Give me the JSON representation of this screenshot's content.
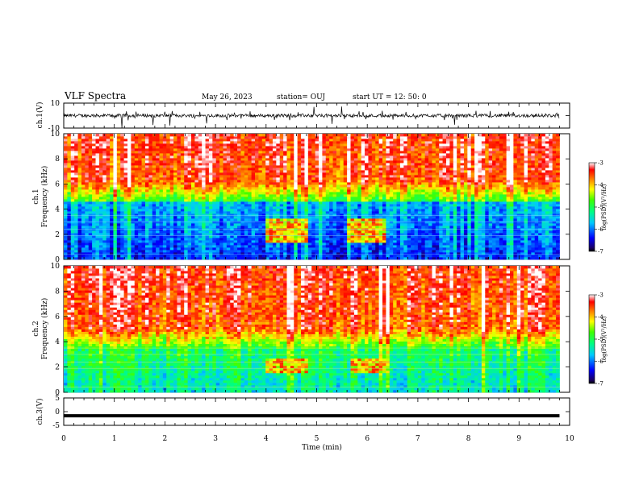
{
  "header": {
    "title": "VLF Spectra",
    "date": "May 26, 2023",
    "station": "station= OUJ",
    "start_time": "start UT =   12: 50: 0"
  },
  "chart_data": [
    {
      "type": "line",
      "panel": "ch1-waveform",
      "ylabel": "ch.1(V)",
      "ylim": [
        -10,
        10
      ],
      "yticks": [
        "10",
        "-10"
      ],
      "xlim": [
        0,
        10
      ],
      "baseline_v": 0,
      "description_level": "noisy signal, mostly between about -2 V and +2 V"
    },
    {
      "type": "heatmap",
      "panel": "ch1-spectrogram",
      "ylabel": "ch.1\nFrequency (kHz)",
      "ylim": [
        0,
        10
      ],
      "yticks": [
        "0",
        "2",
        "4",
        "6",
        "8",
        "10"
      ],
      "xlim": [
        0,
        10
      ],
      "colorbar": {
        "label": "log(PSD)(V²/Hz)",
        "range": [
          -7,
          -3
        ],
        "ticks": [
          "-3",
          "-4",
          "-5",
          "-6",
          "-7"
        ]
      },
      "data_end_min": 9.8,
      "events": [
        {
          "t_start": 4.0,
          "t_end": 4.8,
          "f_low": 1.3,
          "f_high": 3.3
        },
        {
          "t_start": 5.6,
          "t_end": 6.4,
          "f_low": 1.3,
          "f_high": 3.3
        }
      ]
    },
    {
      "type": "heatmap",
      "panel": "ch2-spectrogram",
      "ylabel": "ch.2\nFrequency (kHz)",
      "ylim": [
        0,
        10
      ],
      "yticks": [
        "0",
        "2",
        "4",
        "6",
        "8",
        "10"
      ],
      "xlim": [
        0,
        10
      ],
      "colorbar": {
        "label": "log(PSD)(V²/Hz)",
        "range": [
          -7,
          -3
        ],
        "ticks": [
          "-3",
          "-4",
          "-5",
          "-6",
          "-7"
        ]
      },
      "data_end_min": 9.8,
      "events": [
        {
          "t_start": 4.0,
          "t_end": 4.8,
          "f_low": 1.5,
          "f_high": 2.7
        },
        {
          "t_start": 5.7,
          "t_end": 6.4,
          "f_low": 1.5,
          "f_high": 2.7
        }
      ]
    },
    {
      "type": "line",
      "panel": "ch3-waveform",
      "ylabel": "ch.3(V)",
      "ylim": [
        -5,
        5
      ],
      "yticks": [
        "5",
        "0",
        "-5"
      ],
      "xlim": [
        0,
        10
      ],
      "constant_value_v": -1.5,
      "xlabel": "Time (min)",
      "xticks": [
        "0",
        "1",
        "2",
        "3",
        "4",
        "5",
        "6",
        "7",
        "8",
        "9",
        "10"
      ]
    }
  ]
}
